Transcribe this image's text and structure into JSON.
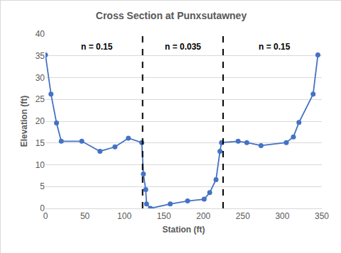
{
  "chart_data": {
    "type": "line",
    "title": "Cross Section at Punxsutawney",
    "x_label": "Station (ft)",
    "y_label": "Elevation (ft)",
    "x": [
      0,
      7,
      14,
      20,
      46,
      69,
      88,
      105,
      122,
      124,
      127,
      128,
      133,
      158,
      180,
      201,
      208,
      216,
      221,
      223,
      244,
      255,
      273,
      305,
      314,
      321,
      339,
      345
    ],
    "series": [
      {
        "name": "Cross Section",
        "color": "#4472c4",
        "marker": "circle",
        "line_style": "solid",
        "values": [
          35.2,
          26.2,
          19.6,
          15.4,
          15.4,
          13.1,
          14.1,
          16.1,
          15.1,
          7.9,
          4.3,
          1.0,
          0,
          1.0,
          1.7,
          2.1,
          3.6,
          6.6,
          13.1,
          15.1,
          15.4,
          15.1,
          14.4,
          15.1,
          16.4,
          19.7,
          26.2,
          35.2
        ]
      }
    ],
    "xlim": [
      0,
      350
    ],
    "xticks": [
      0,
      50,
      100,
      150,
      200,
      250,
      300,
      350
    ],
    "ylim": [
      0,
      40
    ],
    "yticks": [
      0,
      5,
      10,
      15,
      20,
      25,
      30,
      35,
      40
    ],
    "grid": true,
    "vertical_lines": [
      {
        "x": 123,
        "line_style": "dashed",
        "color": "#000000"
      },
      {
        "x": 225,
        "line_style": "dashed",
        "color": "#000000"
      }
    ],
    "annotations": [
      {
        "text": "n = 0.15",
        "x": 65,
        "y": 37
      },
      {
        "text": "n = 0.035",
        "x": 174,
        "y": 37
      },
      {
        "text": "n = 0.15",
        "x": 290,
        "y": 37
      }
    ]
  }
}
